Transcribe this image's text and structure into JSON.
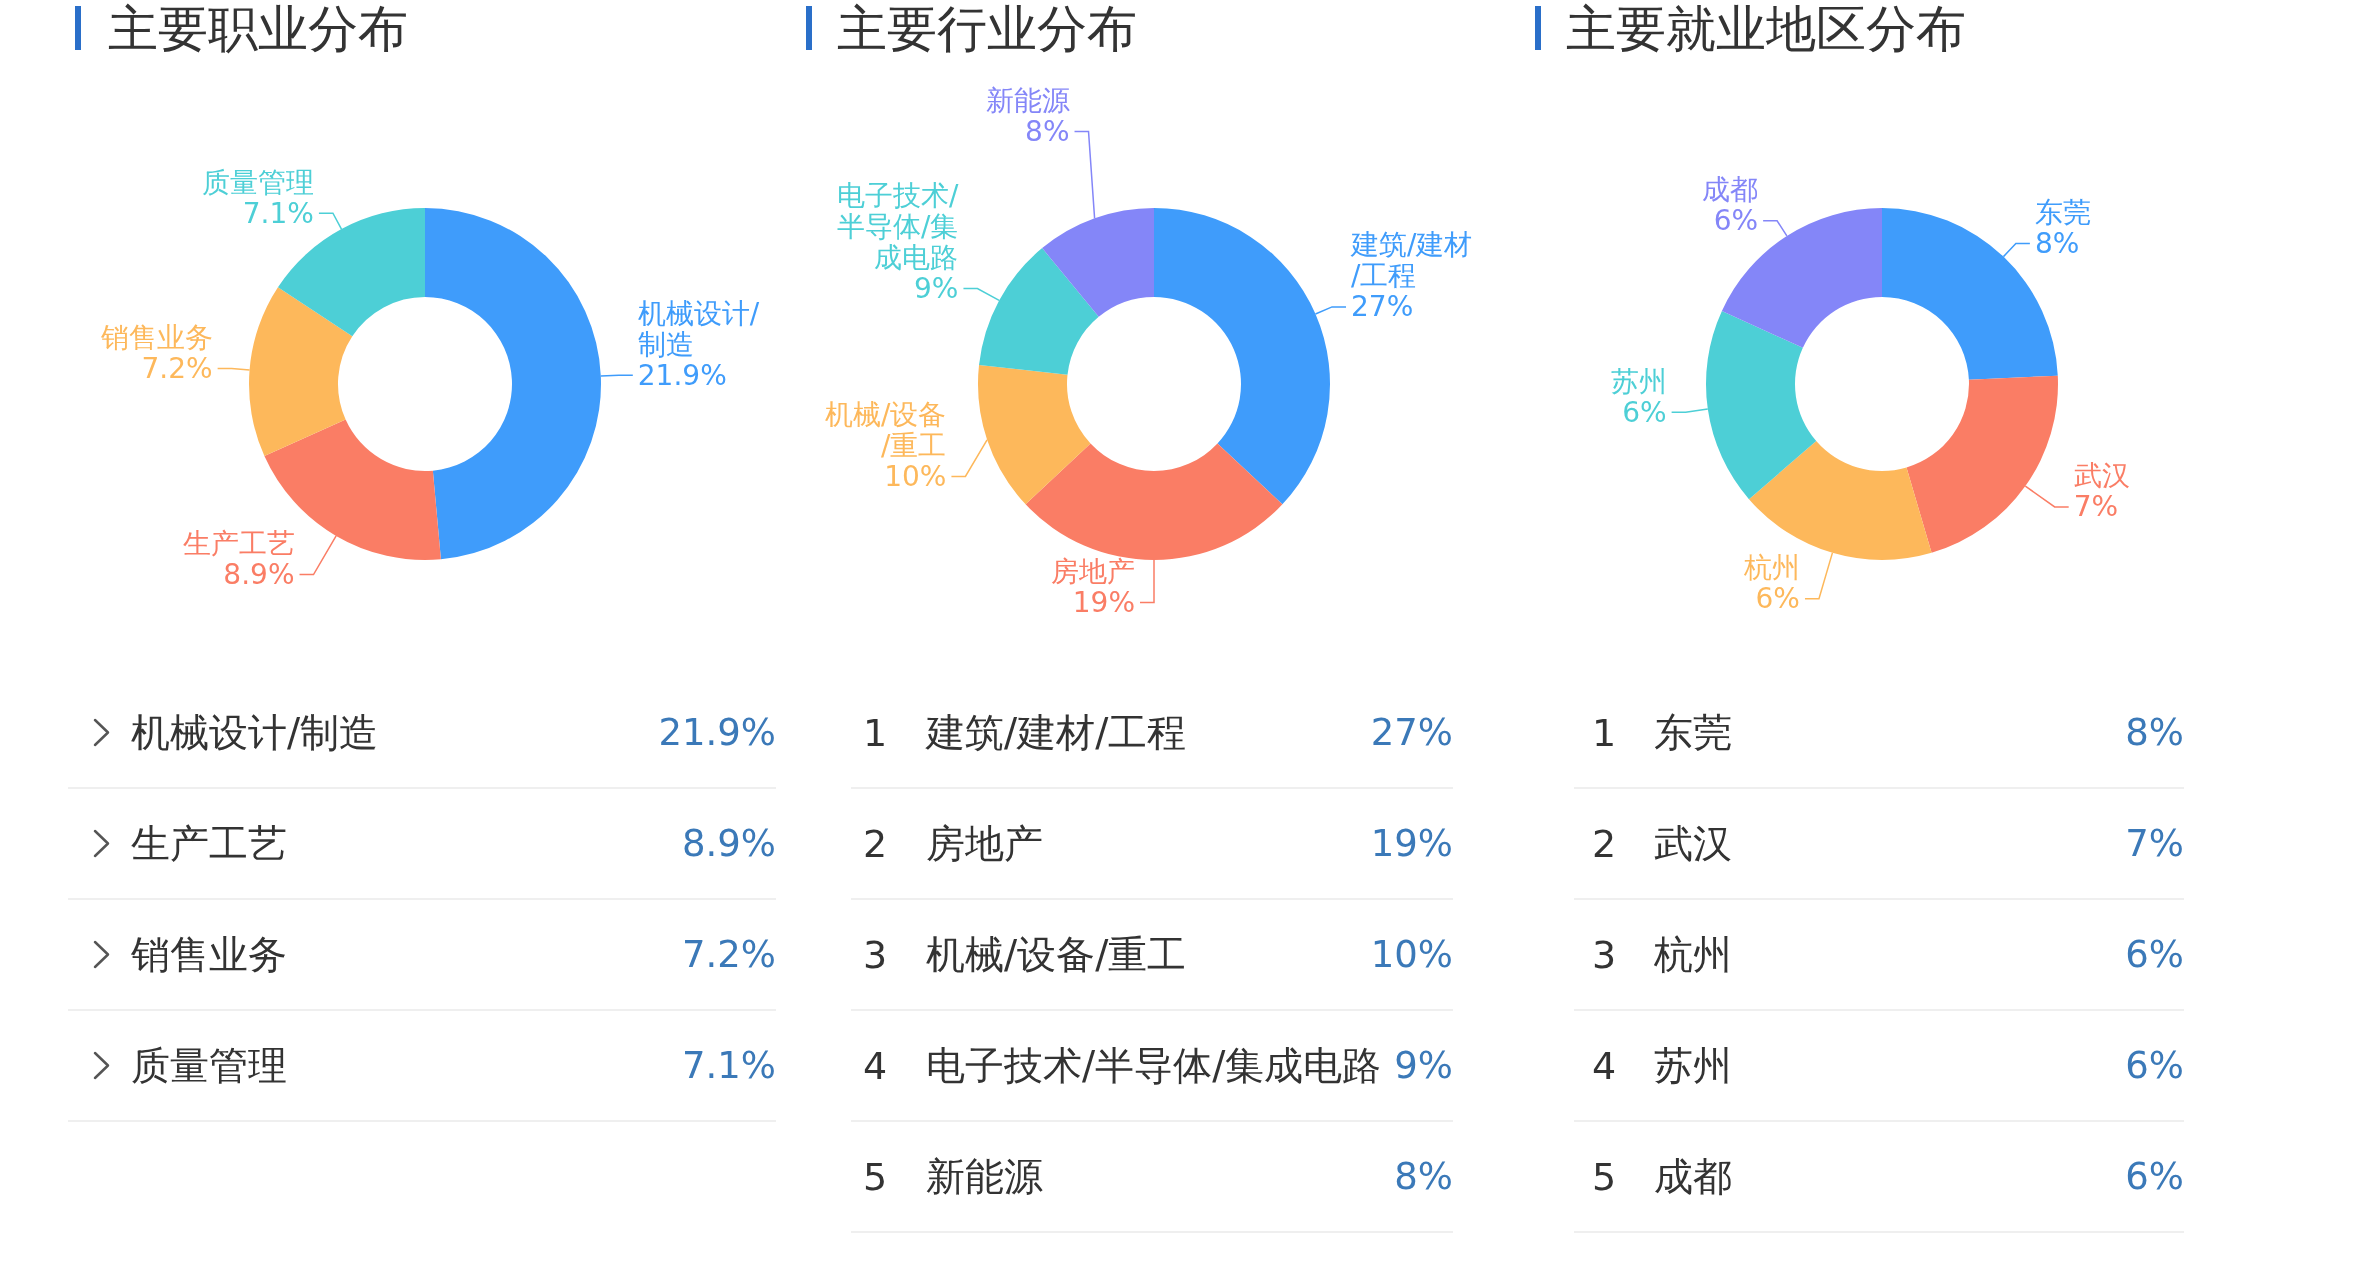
{
  "chart_data": [
    {
      "type": "donut",
      "title": "主要职业分布",
      "categories": [
        "机械设计/制造",
        "生产工艺",
        "销售业务",
        "质量管理"
      ],
      "values": [
        21.9,
        8.9,
        7.2,
        7.1
      ],
      "value_labels": [
        "21.9%",
        "8.9%",
        "7.2%",
        "7.1%"
      ],
      "colors": [
        "#3f9cfb",
        "#fa7d65",
        "#fdb85b",
        "#4dcfd6"
      ]
    },
    {
      "type": "donut",
      "title": "主要行业分布",
      "categories": [
        "建筑/建材/工程",
        "房地产",
        "机械/设备/重工",
        "电子技术/半导体/集成电路",
        "新能源"
      ],
      "values": [
        27,
        19,
        10,
        9,
        8
      ],
      "value_labels": [
        "27%",
        "19%",
        "10%",
        "9%",
        "8%"
      ],
      "colors": [
        "#3f9cfb",
        "#fa7d65",
        "#fdb85b",
        "#4dcfd6",
        "#8486f8"
      ],
      "annotations": [
        "1",
        "2",
        "3",
        "4",
        "5"
      ]
    },
    {
      "type": "donut",
      "title": "主要就业地区分布",
      "categories": [
        "东莞",
        "武汉",
        "杭州",
        "苏州",
        "成都"
      ],
      "values": [
        8,
        7,
        6,
        6,
        6
      ],
      "value_labels": [
        "8%",
        "7%",
        "6%",
        "6%",
        "6%"
      ],
      "colors": [
        "#3f9cfb",
        "#fa7d65",
        "#fdb85b",
        "#4dcfd6",
        "#8486f8"
      ],
      "annotations": [
        "1",
        "2",
        "3",
        "4",
        "5"
      ]
    }
  ]
}
